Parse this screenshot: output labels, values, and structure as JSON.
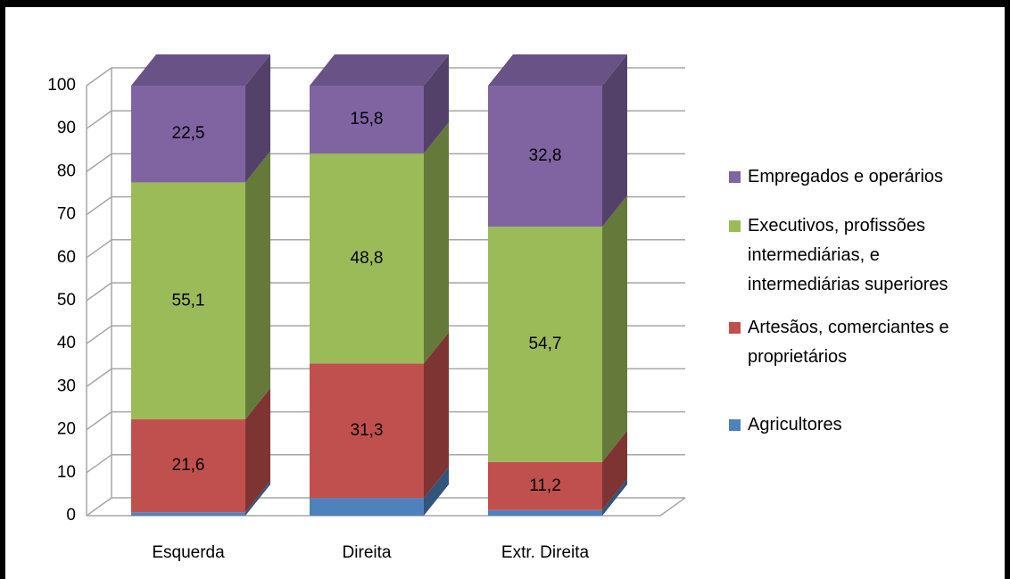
{
  "chart_data": {
    "type": "bar",
    "stacked": true,
    "categories": [
      "Esquerda",
      "Direita",
      "Extr. Direita"
    ],
    "series": [
      {
        "name": "Agricultores",
        "color": "#4f81bd",
        "values": [
          0.8,
          4.1,
          1.3
        ],
        "value_labels": [
          null,
          null,
          null
        ]
      },
      {
        "name": "Artesãos, comerciantes e proprietários",
        "color": "#c0504d",
        "values": [
          21.6,
          31.3,
          11.2
        ],
        "value_labels": [
          "21,6",
          "31,3",
          "11,2"
        ]
      },
      {
        "name": "Executivos, profissões intermediárias, e intermediárias superiores",
        "color": "#9bbb59",
        "values": [
          55.1,
          48.8,
          54.7
        ],
        "value_labels": [
          "55,1",
          "48,8",
          "54,7"
        ]
      },
      {
        "name": "Empregados e operários",
        "color": "#8064a2",
        "values": [
          22.5,
          15.8,
          32.8
        ],
        "value_labels": [
          "22,5",
          "15,8",
          "32,8"
        ]
      }
    ],
    "ylim": [
      0,
      100
    ],
    "yticks": [
      0,
      10,
      20,
      30,
      40,
      50,
      60,
      70,
      80,
      90,
      100
    ],
    "grid": true,
    "legend": "right"
  }
}
